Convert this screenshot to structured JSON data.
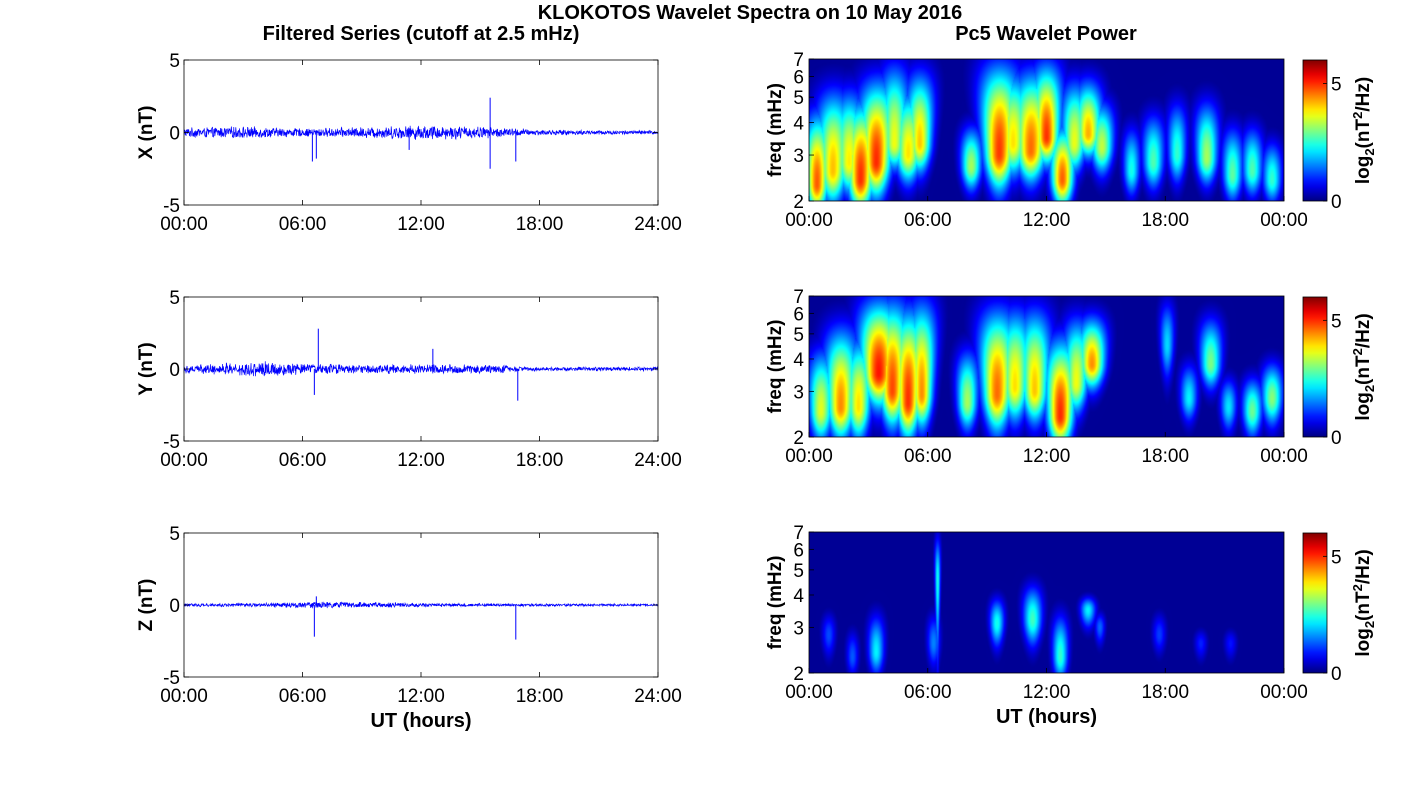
{
  "figure": {
    "title": "KLOKOTOS Wavelet Spectra on 10 May 2016",
    "left_column_title": "Filtered Series (cutoff at 2.5 mHz)",
    "right_column_title": "Pc5 Wavelet Power"
  },
  "chart_data": [
    {
      "type": "line",
      "panel": "X filtered series",
      "title": "",
      "xlabel": "",
      "ylabel": "X (nT)",
      "x_ticks": [
        "00:00",
        "06:00",
        "12:00",
        "18:00",
        "24:00"
      ],
      "xlim_hours": [
        0,
        24
      ],
      "y_ticks": [
        "-5",
        "0",
        "5"
      ],
      "ylim": [
        -5,
        5
      ],
      "series": [
        {
          "color": "#0000ff",
          "noise_amplitude_profile_hours": [
            [
              0,
              0.35
            ],
            [
              3,
              0.45
            ],
            [
              6,
              0.3
            ],
            [
              9,
              0.4
            ],
            [
              12,
              0.55
            ],
            [
              15,
              0.45
            ],
            [
              18,
              0.2
            ],
            [
              24,
              0.15
            ]
          ],
          "spikes": [
            {
              "x": 6.5,
              "y": -2.0
            },
            {
              "x": 6.7,
              "y": -1.8
            },
            {
              "x": 11.4,
              "y": -1.2
            },
            {
              "x": 15.5,
              "y": 2.4
            },
            {
              "x": 15.5,
              "y": -2.5
            },
            {
              "x": 16.8,
              "y": -2.0
            }
          ]
        }
      ]
    },
    {
      "type": "line",
      "panel": "Y filtered series",
      "title": "",
      "xlabel": "",
      "ylabel": "Y (nT)",
      "x_ticks": [
        "00:00",
        "06:00",
        "12:00",
        "18:00",
        "24:00"
      ],
      "xlim_hours": [
        0,
        24
      ],
      "y_ticks": [
        "-5",
        "0",
        "5"
      ],
      "ylim": [
        -5,
        5
      ],
      "series": [
        {
          "color": "#0000ff",
          "noise_amplitude_profile_hours": [
            [
              0,
              0.3
            ],
            [
              4,
              0.6
            ],
            [
              6,
              0.4
            ],
            [
              9,
              0.35
            ],
            [
              12,
              0.35
            ],
            [
              15,
              0.35
            ],
            [
              18,
              0.15
            ],
            [
              24,
              0.15
            ]
          ],
          "spikes": [
            {
              "x": 6.8,
              "y": 2.8
            },
            {
              "x": 6.6,
              "y": -1.8
            },
            {
              "x": 12.6,
              "y": 1.4
            },
            {
              "x": 16.9,
              "y": -2.2
            }
          ]
        }
      ]
    },
    {
      "type": "line",
      "panel": "Z filtered series",
      "title": "",
      "xlabel": "UT (hours)",
      "ylabel": "Z (nT)",
      "x_ticks": [
        "00:00",
        "06:00",
        "12:00",
        "18:00",
        "24:00"
      ],
      "xlim_hours": [
        0,
        24
      ],
      "y_ticks": [
        "-5",
        "0",
        "5"
      ],
      "ylim": [
        -5,
        5
      ],
      "series": [
        {
          "color": "#0000ff",
          "noise_amplitude_profile_hours": [
            [
              0,
              0.12
            ],
            [
              4,
              0.15
            ],
            [
              7,
              0.25
            ],
            [
              12,
              0.15
            ],
            [
              18,
              0.1
            ],
            [
              24,
              0.08
            ]
          ],
          "spikes": [
            {
              "x": 6.6,
              "y": -2.2
            },
            {
              "x": 6.7,
              "y": 0.6
            },
            {
              "x": 16.8,
              "y": -2.4
            }
          ]
        }
      ]
    },
    {
      "type": "heatmap",
      "panel": "X wavelet power",
      "title": "",
      "xlabel": "",
      "ylabel": "freq (mHz)",
      "x_ticks": [
        "00:00",
        "06:00",
        "12:00",
        "18:00",
        "00:00"
      ],
      "xlim_hours": [
        0,
        24
      ],
      "y_ticks": [
        "2",
        "3",
        "4",
        "5",
        "6",
        "7"
      ],
      "ylim_mHz": [
        2,
        7
      ],
      "y_scale": "log",
      "colorbar": {
        "label": "log2(nT^2/Hz)",
        "ticks": [
          "0",
          "5"
        ],
        "range": [
          0,
          6
        ]
      },
      "blobs": [
        {
          "t": 0.4,
          "f": 2.3,
          "dt": 0.35,
          "df": 0.35,
          "p": 5.5,
          "top": 4.5
        },
        {
          "t": 1.2,
          "f": 2.6,
          "dt": 0.4,
          "df": 0.45,
          "p": 4.8,
          "top": 5.5
        },
        {
          "t": 2.0,
          "f": 2.8,
          "dt": 0.35,
          "df": 0.45,
          "p": 4.3,
          "top": 5.5
        },
        {
          "t": 2.6,
          "f": 2.4,
          "dt": 0.4,
          "df": 0.4,
          "p": 5.8,
          "top": 5.0
        },
        {
          "t": 3.4,
          "f": 2.8,
          "dt": 0.4,
          "df": 0.5,
          "p": 5.9,
          "top": 6.0
        },
        {
          "t": 4.3,
          "f": 3.3,
          "dt": 0.3,
          "df": 0.45,
          "p": 4.2,
          "top": 7.0
        },
        {
          "t": 5.0,
          "f": 3.0,
          "dt": 0.35,
          "df": 0.45,
          "p": 4.5,
          "top": 5.5
        },
        {
          "t": 5.6,
          "f": 3.3,
          "dt": 0.3,
          "df": 0.5,
          "p": 4.8,
          "top": 6.5
        },
        {
          "t": 8.2,
          "f": 2.7,
          "dt": 0.3,
          "df": 0.35,
          "p": 3.8,
          "top": 4.0
        },
        {
          "t": 9.6,
          "f": 3.0,
          "dt": 0.4,
          "df": 0.55,
          "p": 5.7,
          "top": 7.0
        },
        {
          "t": 10.3,
          "f": 3.3,
          "dt": 0.35,
          "df": 0.55,
          "p": 4.5,
          "top": 6.5
        },
        {
          "t": 11.2,
          "f": 3.1,
          "dt": 0.4,
          "df": 0.5,
          "p": 5.4,
          "top": 6.5
        },
        {
          "t": 12.0,
          "f": 3.5,
          "dt": 0.3,
          "df": 0.5,
          "p": 5.8,
          "top": 7.0
        },
        {
          "t": 12.8,
          "f": 2.4,
          "dt": 0.35,
          "df": 0.35,
          "p": 5.5,
          "top": 4.0
        },
        {
          "t": 13.4,
          "f": 3.3,
          "dt": 0.3,
          "df": 0.5,
          "p": 4.2,
          "top": 6.0
        },
        {
          "t": 14.1,
          "f": 3.6,
          "dt": 0.3,
          "df": 0.45,
          "p": 4.9,
          "top": 6.0
        },
        {
          "t": 14.8,
          "f": 3.2,
          "dt": 0.3,
          "df": 0.45,
          "p": 4.0,
          "top": 5.0
        },
        {
          "t": 16.3,
          "f": 2.6,
          "dt": 0.25,
          "df": 0.35,
          "p": 2.8,
          "top": 4.0
        },
        {
          "t": 17.4,
          "f": 2.8,
          "dt": 0.3,
          "df": 0.4,
          "p": 3.2,
          "top": 4.5
        },
        {
          "t": 18.6,
          "f": 3.0,
          "dt": 0.25,
          "df": 0.45,
          "p": 3.0,
          "top": 5.0
        },
        {
          "t": 20.1,
          "f": 2.9,
          "dt": 0.3,
          "df": 0.4,
          "p": 3.8,
          "top": 5.0
        },
        {
          "t": 21.4,
          "f": 2.5,
          "dt": 0.3,
          "df": 0.35,
          "p": 3.3,
          "top": 4.0
        },
        {
          "t": 22.4,
          "f": 2.6,
          "dt": 0.3,
          "df": 0.35,
          "p": 3.2,
          "top": 4.0
        },
        {
          "t": 23.4,
          "f": 2.4,
          "dt": 0.3,
          "df": 0.3,
          "p": 3.0,
          "top": 3.5
        }
      ]
    },
    {
      "type": "heatmap",
      "panel": "Y wavelet power",
      "title": "",
      "xlabel": "",
      "ylabel": "freq (mHz)",
      "x_ticks": [
        "00:00",
        "06:00",
        "12:00",
        "18:00",
        "00:00"
      ],
      "xlim_hours": [
        0,
        24
      ],
      "y_ticks": [
        "2",
        "3",
        "4",
        "5",
        "6",
        "7"
      ],
      "ylim_mHz": [
        2,
        7
      ],
      "y_scale": "log",
      "colorbar": {
        "label": "log2(nT^2/Hz)",
        "ticks": [
          "0",
          "5"
        ],
        "range": [
          0,
          6
        ]
      },
      "blobs": [
        {
          "t": 0.6,
          "f": 2.5,
          "dt": 0.35,
          "df": 0.4,
          "p": 4.2,
          "top": 4.5
        },
        {
          "t": 1.6,
          "f": 2.6,
          "dt": 0.4,
          "df": 0.45,
          "p": 5.2,
          "top": 5.5
        },
        {
          "t": 2.5,
          "f": 2.6,
          "dt": 0.35,
          "df": 0.45,
          "p": 4.6,
          "top": 5.0
        },
        {
          "t": 3.5,
          "f": 3.5,
          "dt": 0.4,
          "df": 0.6,
          "p": 5.9,
          "top": 7.0
        },
        {
          "t": 4.2,
          "f": 3.0,
          "dt": 0.35,
          "df": 0.55,
          "p": 5.6,
          "top": 7.0
        },
        {
          "t": 5.0,
          "f": 2.7,
          "dt": 0.35,
          "df": 0.5,
          "p": 5.8,
          "top": 6.5
        },
        {
          "t": 5.7,
          "f": 2.9,
          "dt": 0.3,
          "df": 0.5,
          "p": 5.2,
          "top": 7.0
        },
        {
          "t": 8.0,
          "f": 2.7,
          "dt": 0.3,
          "df": 0.4,
          "p": 3.8,
          "top": 4.5
        },
        {
          "t": 9.5,
          "f": 2.9,
          "dt": 0.4,
          "df": 0.55,
          "p": 5.4,
          "top": 6.5
        },
        {
          "t": 10.4,
          "f": 3.1,
          "dt": 0.35,
          "df": 0.55,
          "p": 4.6,
          "top": 6.5
        },
        {
          "t": 11.4,
          "f": 3.0,
          "dt": 0.35,
          "df": 0.5,
          "p": 4.8,
          "top": 6.5
        },
        {
          "t": 12.7,
          "f": 2.4,
          "dt": 0.4,
          "df": 0.4,
          "p": 5.9,
          "top": 5.0
        },
        {
          "t": 13.5,
          "f": 3.2,
          "dt": 0.3,
          "df": 0.5,
          "p": 4.3,
          "top": 6.0
        },
        {
          "t": 14.3,
          "f": 3.8,
          "dt": 0.3,
          "df": 0.5,
          "p": 5.2,
          "top": 6.0
        },
        {
          "t": 18.1,
          "f": 4.5,
          "dt": 0.15,
          "df": 0.8,
          "p": 2.4,
          "top": 7.0
        },
        {
          "t": 19.2,
          "f": 2.8,
          "dt": 0.25,
          "df": 0.35,
          "p": 2.6,
          "top": 4.0
        },
        {
          "t": 20.3,
          "f": 3.8,
          "dt": 0.25,
          "df": 0.5,
          "p": 3.5,
          "top": 6.0
        },
        {
          "t": 21.2,
          "f": 2.6,
          "dt": 0.25,
          "df": 0.35,
          "p": 2.5,
          "top": 3.5
        },
        {
          "t": 22.4,
          "f": 2.5,
          "dt": 0.3,
          "df": 0.35,
          "p": 3.4,
          "top": 3.5
        },
        {
          "t": 23.4,
          "f": 2.8,
          "dt": 0.3,
          "df": 0.4,
          "p": 3.6,
          "top": 4.0
        }
      ]
    },
    {
      "type": "heatmap",
      "panel": "Z wavelet power",
      "title": "",
      "xlabel": "UT (hours)",
      "ylabel": "freq (mHz)",
      "x_ticks": [
        "00:00",
        "06:00",
        "12:00",
        "18:00",
        "00:00"
      ],
      "xlim_hours": [
        0,
        24
      ],
      "y_ticks": [
        "2",
        "3",
        "4",
        "5",
        "6",
        "7"
      ],
      "ylim_mHz": [
        2,
        7
      ],
      "y_scale": "log",
      "colorbar": {
        "label": "log2(nT^2/Hz)",
        "ticks": [
          "0",
          "5"
        ],
        "range": [
          0,
          6
        ]
      },
      "blobs": [
        {
          "t": 1.0,
          "f": 2.8,
          "dt": 0.2,
          "df": 0.35,
          "p": 1.4,
          "top": 3.5
        },
        {
          "t": 2.2,
          "f": 2.3,
          "dt": 0.2,
          "df": 0.25,
          "p": 1.5,
          "top": 3.0
        },
        {
          "t": 3.4,
          "f": 2.4,
          "dt": 0.25,
          "df": 0.3,
          "p": 2.6,
          "top": 3.5
        },
        {
          "t": 6.5,
          "f": 4.5,
          "dt": 0.06,
          "df": 1.6,
          "p": 2.8,
          "top": 7.0
        },
        {
          "t": 6.3,
          "f": 2.6,
          "dt": 0.2,
          "df": 0.35,
          "p": 1.8,
          "top": 3.5
        },
        {
          "t": 9.5,
          "f": 3.1,
          "dt": 0.2,
          "df": 0.4,
          "p": 2.8,
          "top": 4.0
        },
        {
          "t": 11.3,
          "f": 3.2,
          "dt": 0.25,
          "df": 0.45,
          "p": 3.1,
          "top": 4.5
        },
        {
          "t": 12.7,
          "f": 2.3,
          "dt": 0.25,
          "df": 0.3,
          "p": 3.0,
          "top": 3.5
        },
        {
          "t": 14.1,
          "f": 3.5,
          "dt": 0.2,
          "df": 0.35,
          "p": 2.6,
          "top": 4.0
        },
        {
          "t": 14.7,
          "f": 3.0,
          "dt": 0.15,
          "df": 0.3,
          "p": 1.6,
          "top": 3.5
        },
        {
          "t": 17.7,
          "f": 2.8,
          "dt": 0.2,
          "df": 0.3,
          "p": 1.3,
          "top": 3.5
        },
        {
          "t": 19.8,
          "f": 2.6,
          "dt": 0.2,
          "df": 0.25,
          "p": 1.1,
          "top": 3.0
        },
        {
          "t": 21.3,
          "f": 2.6,
          "dt": 0.2,
          "df": 0.25,
          "p": 1.0,
          "top": 3.0
        }
      ]
    }
  ]
}
